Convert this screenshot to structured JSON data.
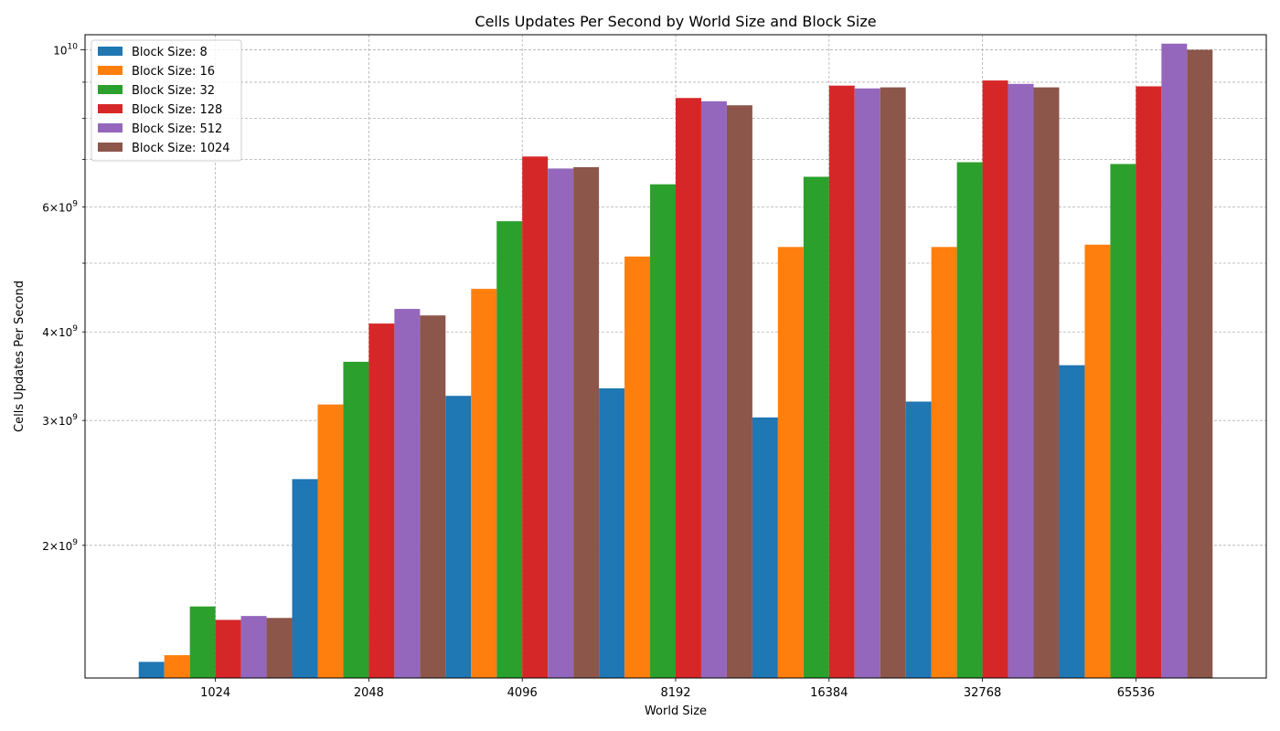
{
  "chart_data": {
    "type": "bar",
    "title": "Cells Updates Per Second by World Size and Block Size",
    "xlabel": "World Size",
    "ylabel": "Cells Updates Per Second",
    "yscale": "log",
    "ylim": [
      1300000000,
      10500000000
    ],
    "grid": true,
    "legend_position": "top-left",
    "categories": [
      "1024",
      "2048",
      "4096",
      "8192",
      "16384",
      "32768",
      "65536"
    ],
    "series": [
      {
        "name": "Block Size: 8",
        "color": "#1f77b4",
        "values": [
          1370000000,
          2480000000,
          3250000000,
          3330000000,
          3030000000,
          3190000000,
          3590000000
        ]
      },
      {
        "name": "Block Size: 16",
        "color": "#ff7f0e",
        "values": [
          1400000000,
          3160000000,
          4600000000,
          5110000000,
          5270000000,
          5270000000,
          5310000000
        ]
      },
      {
        "name": "Block Size: 32",
        "color": "#2ca02c",
        "values": [
          1640000000,
          3630000000,
          5730000000,
          6460000000,
          6620000000,
          6940000000,
          6900000000
        ]
      },
      {
        "name": "Block Size: 128",
        "color": "#d62728",
        "values": [
          1570000000,
          4110000000,
          7070000000,
          8550000000,
          8900000000,
          9050000000,
          8880000000
        ]
      },
      {
        "name": "Block Size: 512",
        "color": "#9467bd",
        "values": [
          1590000000,
          4310000000,
          6800000000,
          8460000000,
          8820000000,
          8950000000,
          10200000000
        ]
      },
      {
        "name": "Block Size: 1024",
        "color": "#8c564b",
        "values": [
          1580000000,
          4220000000,
          6830000000,
          8350000000,
          8850000000,
          8850000000,
          10000000000
        ]
      }
    ],
    "y_major_ticks": [
      {
        "value": 10000000000,
        "mantissa": "",
        "exponent": "10"
      }
    ],
    "y_minor_ticks": [
      {
        "value": 2000000000,
        "mantissa": "2",
        "exponent": "9",
        "labeled": true
      },
      {
        "value": 3000000000,
        "mantissa": "3",
        "exponent": "9",
        "labeled": true
      },
      {
        "value": 4000000000,
        "mantissa": "4",
        "exponent": "9",
        "labeled": true
      },
      {
        "value": 5000000000,
        "labeled": false
      },
      {
        "value": 6000000000,
        "mantissa": "6",
        "exponent": "9",
        "labeled": true
      },
      {
        "value": 7000000000,
        "labeled": false
      },
      {
        "value": 8000000000,
        "labeled": false
      },
      {
        "value": 9000000000,
        "labeled": false
      }
    ]
  }
}
